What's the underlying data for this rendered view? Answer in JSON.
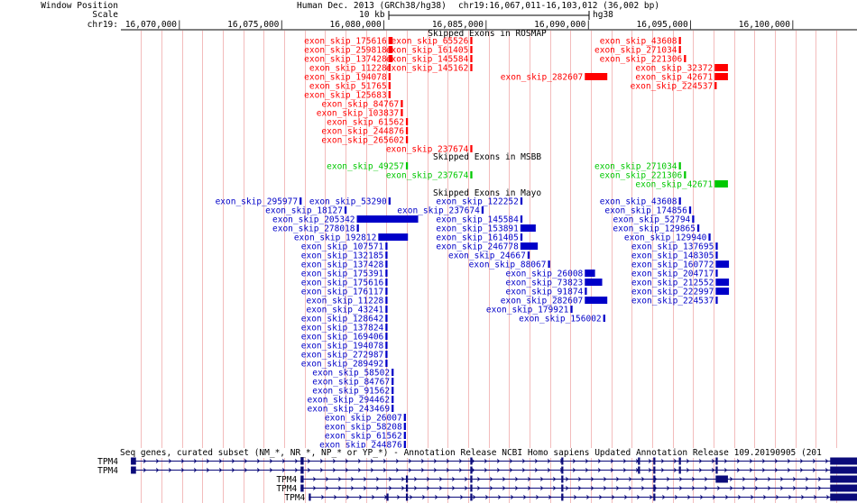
{
  "header": {
    "label_window_position": "Window Position",
    "label_scale": "Scale",
    "label_chrom": "chr19:",
    "assembly": "Human Dec. 2013 (GRCh38/hg38)",
    "position": "chr19:16,067,011-16,103,012 (36,002 bp)",
    "scale_text": "10 kb",
    "scale_db": "hg38"
  },
  "ruler_ticks": [
    {
      "label": "16,070,000|",
      "pos": 16070000
    },
    {
      "label": "16,075,000|",
      "pos": 16075000
    },
    {
      "label": "16,080,000|",
      "pos": 16080000
    },
    {
      "label": "16,085,000|",
      "pos": 16085000
    },
    {
      "label": "16,090,000|",
      "pos": 16090000
    },
    {
      "label": "16,095,000|",
      "pos": 16095000
    },
    {
      "label": "16,100,000|",
      "pos": 16100000
    }
  ],
  "colors": {
    "rosmap": "#ff0000",
    "msbb": "#00c800",
    "mayo": "#0000c8",
    "gene": "#0b0b7a",
    "guide": "#f3bcbc"
  },
  "tracks": {
    "rosmap": {
      "title": "Skipped Exons in ROSMAP",
      "items": [
        {
          "label": "exon_skip_175616",
          "row": 0,
          "start": 16080100,
          "end": 16080300
        },
        {
          "label": "exon_skip_259818",
          "row": 1,
          "start": 16080100,
          "end": 16080300
        },
        {
          "label": "exon_skip_137428",
          "row": 2,
          "start": 16080100,
          "end": 16080300
        },
        {
          "label": "exon_skip_11228",
          "row": 3,
          "start": 16080100,
          "end": 16080200
        },
        {
          "label": "exon_skip_194078",
          "row": 4,
          "start": 16080100,
          "end": 16080200
        },
        {
          "label": "exon_skip_51765",
          "row": 5,
          "start": 16080100,
          "end": 16080200
        },
        {
          "label": "exon_skip_125683",
          "row": 6,
          "start": 16080100,
          "end": 16080200
        },
        {
          "label": "exon_skip_84767",
          "row": 7,
          "start": 16080700,
          "end": 16080800
        },
        {
          "label": "exon_skip_103837",
          "row": 8,
          "start": 16080700,
          "end": 16080800
        },
        {
          "label": "exon_skip_61562",
          "row": 9,
          "start": 16080950,
          "end": 16081050
        },
        {
          "label": "exon_skip_244876",
          "row": 10,
          "start": 16080950,
          "end": 16081050
        },
        {
          "label": "exon_skip_265602",
          "row": 11,
          "start": 16080950,
          "end": 16081050
        },
        {
          "label": "exon_skip_237674",
          "row": 12,
          "start": 16084100,
          "end": 16084200
        },
        {
          "label": "exon_skip_65526",
          "row": 0,
          "start": 16084100,
          "end": 16084200
        },
        {
          "label": "exon_skip_161405",
          "row": 1,
          "start": 16084100,
          "end": 16084200
        },
        {
          "label": "exon_skip_145584",
          "row": 2,
          "start": 16084100,
          "end": 16084200
        },
        {
          "label": "exon_skip_145162",
          "row": 3,
          "start": 16084100,
          "end": 16084200
        },
        {
          "label": "exon_skip_282607",
          "row": 4,
          "start": 16089700,
          "end": 16090800
        },
        {
          "label": "exon_skip_43608",
          "row": 0,
          "start": 16094300,
          "end": 16094400
        },
        {
          "label": "exon_skip_271034",
          "row": 1,
          "start": 16094300,
          "end": 16094400
        },
        {
          "label": "exon_skip_221306",
          "row": 2,
          "start": 16094550,
          "end": 16094650
        },
        {
          "label": "exon_skip_32372",
          "row": 3,
          "start": 16096050,
          "end": 16096700
        },
        {
          "label": "exon_skip_42671",
          "row": 4,
          "start": 16096050,
          "end": 16096700
        },
        {
          "label": "exon_skip_224537",
          "row": 5,
          "start": 16096050,
          "end": 16096150
        }
      ]
    },
    "msbb": {
      "title": "Skipped Exons in MSBB",
      "items": [
        {
          "label": "exon_skip_49257",
          "row": 0,
          "start": 16080950,
          "end": 16081050
        },
        {
          "label": "exon_skip_237674",
          "row": 1,
          "start": 16084100,
          "end": 16084200
        },
        {
          "label": "exon_skip_271034",
          "row": 0,
          "start": 16094300,
          "end": 16094400
        },
        {
          "label": "exon_skip_221306",
          "row": 1,
          "start": 16094550,
          "end": 16094650
        },
        {
          "label": "exon_skip_42671",
          "row": 2,
          "start": 16096050,
          "end": 16096700
        }
      ]
    },
    "mayo": {
      "title": "Skipped Exons in Mayo",
      "items": [
        {
          "label": "exon_skip_295977",
          "row": 0,
          "start": 16075750,
          "end": 16075850
        },
        {
          "label": "exon_skip_53290",
          "row": 0,
          "start": 16080100,
          "end": 16080200
        },
        {
          "label": "exon_skip_18127",
          "row": 1,
          "start": 16077950,
          "end": 16078050
        },
        {
          "label": "exon_skip_205342",
          "row": 2,
          "start": 16078550,
          "end": 16081550
        },
        {
          "label": "exon_skip_278018",
          "row": 3,
          "start": 16078550,
          "end": 16078650
        },
        {
          "label": "exon_skip_192812",
          "row": 4,
          "start": 16079600,
          "end": 16081050
        },
        {
          "label": "exon_skip_107571",
          "row": 5,
          "start": 16079950,
          "end": 16080050
        },
        {
          "label": "exon_skip_132185",
          "row": 6,
          "start": 16079950,
          "end": 16080050
        },
        {
          "label": "exon_skip_137428",
          "row": 7,
          "start": 16079950,
          "end": 16080050
        },
        {
          "label": "exon_skip_175391",
          "row": 8,
          "start": 16079950,
          "end": 16080050
        },
        {
          "label": "exon_skip_175616",
          "row": 9,
          "start": 16079950,
          "end": 16080050
        },
        {
          "label": "exon_skip_176117",
          "row": 10,
          "start": 16079950,
          "end": 16080050
        },
        {
          "label": "exon_skip_11228",
          "row": 11,
          "start": 16079950,
          "end": 16080050
        },
        {
          "label": "exon_skip_43241",
          "row": 12,
          "start": 16079950,
          "end": 16080050
        },
        {
          "label": "exon_skip_128642",
          "row": 13,
          "start": 16079950,
          "end": 16080050
        },
        {
          "label": "exon_skip_137824",
          "row": 14,
          "start": 16079950,
          "end": 16080050
        },
        {
          "label": "exon_skip_169406",
          "row": 15,
          "start": 16079950,
          "end": 16080050
        },
        {
          "label": "exon_skip_194078",
          "row": 16,
          "start": 16079950,
          "end": 16080050
        },
        {
          "label": "exon_skip_272987",
          "row": 17,
          "start": 16079950,
          "end": 16080050
        },
        {
          "label": "exon_skip_289492",
          "row": 18,
          "start": 16079950,
          "end": 16080050
        },
        {
          "label": "exon_skip_58502",
          "row": 19,
          "start": 16080250,
          "end": 16080350
        },
        {
          "label": "exon_skip_84767",
          "row": 20,
          "start": 16080250,
          "end": 16080350
        },
        {
          "label": "exon_skip_91562",
          "row": 21,
          "start": 16080250,
          "end": 16080350
        },
        {
          "label": "exon_skip_294462",
          "row": 22,
          "start": 16080250,
          "end": 16080350
        },
        {
          "label": "exon_skip_243469",
          "row": 23,
          "start": 16080250,
          "end": 16080350
        },
        {
          "label": "exon_skip_26007",
          "row": 24,
          "start": 16080850,
          "end": 16080950
        },
        {
          "label": "exon_skip_58208",
          "row": 25,
          "start": 16080850,
          "end": 16080950
        },
        {
          "label": "exon_skip_61562",
          "row": 26,
          "start": 16080850,
          "end": 16080950
        },
        {
          "label": "exon_skip_244876",
          "row": 27,
          "start": 16080850,
          "end": 16080950
        },
        {
          "label": "exon_skip_122252",
          "row": 0,
          "start": 16086550,
          "end": 16086650
        },
        {
          "label": "exon_skip_237674",
          "row": 1,
          "start": 16084650,
          "end": 16084750
        },
        {
          "label": "exon_skip_145584",
          "row": 2,
          "start": 16086550,
          "end": 16086650
        },
        {
          "label": "exon_skip_153891",
          "row": 3,
          "start": 16086550,
          "end": 16087300
        },
        {
          "label": "exon_skip_161405",
          "row": 4,
          "start": 16086550,
          "end": 16086650
        },
        {
          "label": "exon_skip_246778",
          "row": 5,
          "start": 16086550,
          "end": 16087400
        },
        {
          "label": "exon_skip_24667",
          "row": 6,
          "start": 16086900,
          "end": 16087000
        },
        {
          "label": "exon_skip_88067",
          "row": 7,
          "start": 16087900,
          "end": 16088000
        },
        {
          "label": "exon_skip_26008",
          "row": 8,
          "start": 16089700,
          "end": 16090200
        },
        {
          "label": "exon_skip_73823",
          "row": 9,
          "start": 16089700,
          "end": 16090550
        },
        {
          "label": "exon_skip_91874",
          "row": 10,
          "start": 16089700,
          "end": 16089800
        },
        {
          "label": "exon_skip_282607",
          "row": 11,
          "start": 16089700,
          "end": 16090800
        },
        {
          "label": "exon_skip_179921",
          "row": 12,
          "start": 16089000,
          "end": 16089100
        },
        {
          "label": "exon_skip_156002",
          "row": 13,
          "start": 16090600,
          "end": 16090700
        },
        {
          "label": "exon_skip_43608",
          "row": 0,
          "start": 16094300,
          "end": 16094400
        },
        {
          "label": "exon_skip_174856",
          "row": 1,
          "start": 16094800,
          "end": 16094900
        },
        {
          "label": "exon_skip_52794",
          "row": 2,
          "start": 16094950,
          "end": 16095050
        },
        {
          "label": "exon_skip_129865",
          "row": 3,
          "start": 16095200,
          "end": 16095300
        },
        {
          "label": "exon_skip_129940",
          "row": 4,
          "start": 16095750,
          "end": 16095850
        },
        {
          "label": "exon_skip_137695",
          "row": 5,
          "start": 16096100,
          "end": 16096200
        },
        {
          "label": "exon_skip_148305",
          "row": 6,
          "start": 16096100,
          "end": 16096200
        },
        {
          "label": "exon_skip_160772",
          "row": 7,
          "start": 16096100,
          "end": 16096750
        },
        {
          "label": "exon_skip_204717",
          "row": 8,
          "start": 16096100,
          "end": 16096200
        },
        {
          "label": "exon_skip_212552",
          "row": 9,
          "start": 16096100,
          "end": 16096750
        },
        {
          "label": "exon_skip_222997",
          "row": 10,
          "start": 16096100,
          "end": 16096750
        },
        {
          "label": "exon_skip_224537",
          "row": 11,
          "start": 16096100,
          "end": 16096200
        }
      ]
    }
  },
  "refseq": {
    "title": "Seq genes, curated subset (NM_*, NR_*, NP_* or YP_*) - Annotation Release NCBI Homo sapiens Updated Annotation Release 109.20190905 (201",
    "transcripts": [
      {
        "label": "TPM4",
        "start": 16067500,
        "end": 16103012,
        "exons": [
          [
            16067500,
            16067750
          ],
          [
            16075800,
            16075950
          ],
          [
            16084100,
            16084200
          ],
          [
            16088550,
            16088650
          ],
          [
            16092300,
            16092400
          ],
          [
            16093050,
            16093150
          ],
          [
            16094300,
            16094400
          ],
          [
            16096100,
            16096200
          ],
          [
            16101700,
            16103012
          ]
        ]
      },
      {
        "label": "TPM4",
        "start": 16067500,
        "end": 16103012,
        "exons": [
          [
            16067500,
            16067750
          ],
          [
            16075800,
            16075950
          ],
          [
            16084100,
            16084200
          ],
          [
            16088550,
            16088650
          ],
          [
            16092300,
            16092400
          ],
          [
            16093050,
            16093150
          ],
          [
            16094300,
            16094400
          ],
          [
            16096100,
            16096200
          ],
          [
            16101700,
            16103012
          ]
        ]
      },
      {
        "label": "TPM4",
        "start": 16075800,
        "end": 16103012,
        "exons": [
          [
            16075800,
            16075950
          ],
          [
            16080950,
            16081050
          ],
          [
            16084100,
            16084200
          ],
          [
            16088550,
            16088650
          ],
          [
            16093050,
            16093150
          ],
          [
            16096100,
            16096700
          ],
          [
            16101700,
            16103012
          ]
        ]
      },
      {
        "label": "TPM4",
        "start": 16075800,
        "end": 16103012,
        "exons": [
          [
            16075800,
            16075950
          ],
          [
            16080950,
            16081050
          ],
          [
            16084100,
            16084200
          ],
          [
            16088550,
            16088650
          ],
          [
            16093050,
            16093150
          ],
          [
            16101700,
            16103012
          ]
        ]
      },
      {
        "label": "TPM4",
        "start": 16076200,
        "end": 16103012,
        "exons": [
          [
            16076200,
            16076300
          ],
          [
            16080000,
            16080100
          ],
          [
            16080950,
            16081050
          ],
          [
            16084100,
            16084200
          ],
          [
            16088550,
            16088650
          ],
          [
            16093050,
            16093150
          ],
          [
            16101700,
            16103012
          ]
        ]
      }
    ]
  }
}
